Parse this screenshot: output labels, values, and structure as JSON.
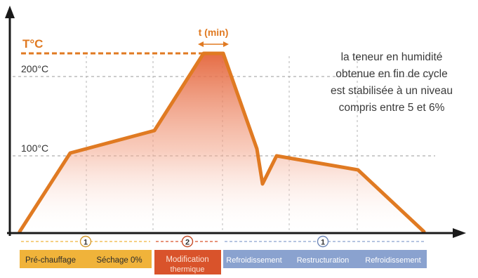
{
  "diagram": {
    "y_axis_label": "T°C",
    "duration_label": "t (min)",
    "temp_200": "200°C",
    "temp_100": "100°C",
    "note_lines": [
      "la teneur en humidité",
      "obtenue en fin de cycle",
      "est stabilisée à un niveau",
      "compris entre 5 et 6%"
    ],
    "phases": [
      {
        "number": "1",
        "labels": [
          "Pré-chauffage",
          "Séchage 0%"
        ]
      },
      {
        "number": "2",
        "labels": [
          "Modification",
          "thermique"
        ]
      },
      {
        "number": "1",
        "labels": [
          "Refroidissement",
          "Restructuration",
          "Refroidissement"
        ]
      }
    ],
    "colors": {
      "curve": "#e07a22",
      "fill": "#e4643a",
      "phase_1": "#f0b33a",
      "phase_2": "#d9532b",
      "phase_3": "#8aa2cf",
      "axis": "#1a1a1a",
      "grid": "#9a9a9a"
    }
  }
}
